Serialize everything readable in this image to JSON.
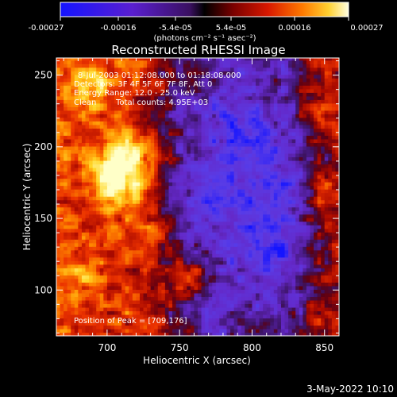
{
  "chart_data": {
    "type": "heatmap",
    "title": "Reconstructed RHESSI Image",
    "xlabel": "Heliocentric X (arcsec)",
    "ylabel": "Heliocentric Y (arcsec)",
    "xlim": [
      665,
      860
    ],
    "ylim": [
      68,
      262
    ],
    "x_ticks": [
      700,
      750,
      800,
      850
    ],
    "y_ticks": [
      100,
      150,
      200,
      250
    ],
    "colorbar": {
      "ticks": [
        "-0.00027",
        "-0.00016",
        "-5.4e-05",
        "5.4e-05",
        "0.00016",
        "0.00027"
      ],
      "unit_label": "(photons cm⁻² s⁻¹ asec⁻²)",
      "range": [
        -0.00027,
        0.00027
      ]
    },
    "annotations": {
      "time": "8-Jul-2003 01:12:08.000 to 01:18:08.000",
      "detectors": "Detectors: 3F 4F 5F 6F 7F 8F, Att 0",
      "energy": "Energy Range: 12.0 - 25.0 keV",
      "method": "Clean",
      "counts": "Total counts: 4.95E+03",
      "peak": "Position of Peak = [709,176]"
    },
    "peak_position": [
      709,
      176
    ],
    "date_stamp": "3-May-2022 10:10"
  }
}
